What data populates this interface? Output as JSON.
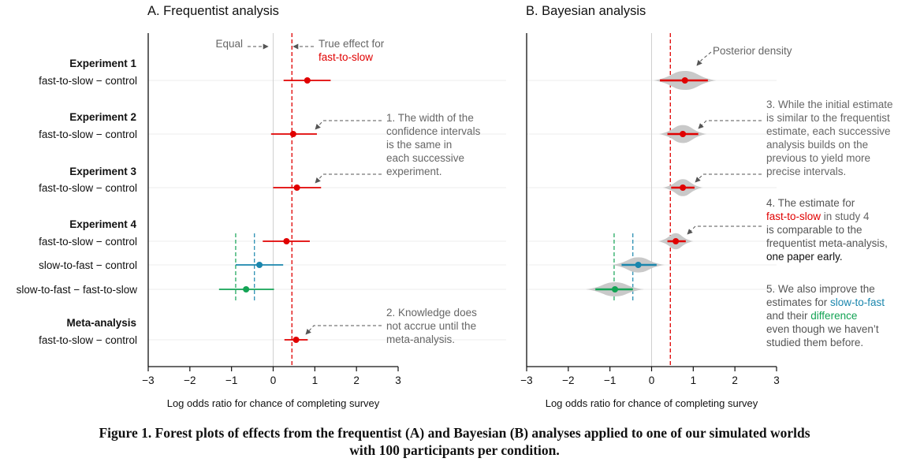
{
  "caption": {
    "line1": "Figure 1. Forest plots of effects from the frequentist (A) and Bayesian (B) analyses applied to one of our simulated worlds",
    "line2": "with 100 participants per condition."
  },
  "colors": {
    "fast_to_slow": "#e00000",
    "slow_to_fast": "#1a86ad",
    "difference": "#13a354",
    "true_line": "#e00000",
    "axis": "#111111",
    "annotation": "#666666",
    "violin": "#c9c9c9"
  },
  "rows": {
    "groups": [
      {
        "heading": "Experiment 1",
        "labels": [
          "fast-to-slow − control"
        ]
      },
      {
        "heading": "Experiment 2",
        "labels": [
          "fast-to-slow − control"
        ]
      },
      {
        "heading": "Experiment 3",
        "labels": [
          "fast-to-slow − control"
        ]
      },
      {
        "heading": "Experiment 4",
        "labels": [
          "fast-to-slow − control",
          "slow-to-fast − control",
          "slow-to-fast − fast-to-slow"
        ]
      },
      {
        "heading": "Meta-analysis",
        "labels": [
          "fast-to-slow − control"
        ]
      }
    ]
  },
  "chart_data": [
    {
      "type": "forest",
      "title": "A. Frequentist analysis",
      "xlabel": "Log odds ratio for chance of completing survey",
      "xlim": [
        -3,
        3
      ],
      "xticks": [
        -3,
        -2,
        -1,
        0,
        1,
        2,
        3
      ],
      "xtick_labels": [
        "−3",
        "−2",
        "−1",
        "0",
        "1",
        "2",
        "3"
      ],
      "true_effect": 0.45,
      "points": [
        {
          "row": "Experiment 1: fast-to-slow − control",
          "estimate": 0.82,
          "low": 0.25,
          "high": 1.38,
          "series": "fast-to-slow"
        },
        {
          "row": "Experiment 2: fast-to-slow − control",
          "estimate": 0.48,
          "low": -0.05,
          "high": 1.05,
          "series": "fast-to-slow"
        },
        {
          "row": "Experiment 3: fast-to-slow − control",
          "estimate": 0.57,
          "low": 0.0,
          "high": 1.15,
          "series": "fast-to-slow"
        },
        {
          "row": "Experiment 4: fast-to-slow − control",
          "estimate": 0.32,
          "low": -0.25,
          "high": 0.88,
          "series": "fast-to-slow"
        },
        {
          "row": "Experiment 4: slow-to-fast − control",
          "estimate": -0.33,
          "low": -0.9,
          "high": 0.24,
          "series": "slow-to-fast"
        },
        {
          "row": "Experiment 4: slow-to-fast − fast-to-slow",
          "estimate": -0.65,
          "low": -1.3,
          "high": 0.02,
          "series": "difference"
        },
        {
          "row": "Meta-analysis: fast-to-slow − control",
          "estimate": 0.55,
          "low": 0.27,
          "high": 0.83,
          "series": "fast-to-slow"
        }
      ],
      "reference_lines": [
        {
          "x": -0.9,
          "color": "difference"
        },
        {
          "x": -0.45,
          "color": "slow-to-fast"
        }
      ],
      "annotations": {
        "equal": "Equal",
        "true_effect_1": "True effect for",
        "true_effect_2": "fast-to-slow",
        "note1": [
          "1. The width of the",
          "confidence intervals",
          "is the same in",
          "each successive",
          "experiment."
        ],
        "note2": [
          "2. Knowledge does",
          "not accrue until the",
          "meta-analysis."
        ]
      }
    },
    {
      "type": "forest-violin",
      "title": "B. Bayesian analysis",
      "xlabel": "Log odds ratio for chance of completing survey",
      "xlim": [
        -3,
        3
      ],
      "xticks": [
        -3,
        -2,
        -1,
        0,
        1,
        2,
        3
      ],
      "xtick_labels": [
        "−3",
        "−2",
        "−1",
        "0",
        "1",
        "2",
        "3"
      ],
      "true_effect": 0.45,
      "points": [
        {
          "row": "Experiment 1: fast-to-slow − control",
          "estimate": 0.8,
          "low": 0.2,
          "high": 1.35,
          "series": "fast-to-slow",
          "density_width": 0.6
        },
        {
          "row": "Experiment 2: fast-to-slow − control",
          "estimate": 0.75,
          "low": 0.38,
          "high": 1.12,
          "series": "fast-to-slow",
          "density_width": 0.42
        },
        {
          "row": "Experiment 3: fast-to-slow − control",
          "estimate": 0.75,
          "low": 0.47,
          "high": 1.03,
          "series": "fast-to-slow",
          "density_width": 0.33
        },
        {
          "row": "Experiment 4: fast-to-slow − control",
          "estimate": 0.58,
          "low": 0.38,
          "high": 0.82,
          "series": "fast-to-slow",
          "density_width": 0.27
        },
        {
          "row": "Experiment 4: slow-to-fast − control",
          "estimate": -0.32,
          "low": -0.72,
          "high": 0.12,
          "series": "slow-to-fast",
          "density_width": 0.48
        },
        {
          "row": "Experiment 4: slow-to-fast − fast-to-slow",
          "estimate": -0.88,
          "low": -1.35,
          "high": -0.45,
          "series": "difference",
          "density_width": 0.55
        }
      ],
      "reference_lines": [
        {
          "x": -0.9,
          "color": "difference"
        },
        {
          "x": -0.45,
          "color": "slow-to-fast"
        }
      ],
      "annotations": {
        "posterior": "Posterior density",
        "note3": [
          "3. While the initial estimate",
          "is similar to the frequentist",
          "estimate, each successive",
          "analysis builds on the",
          "previous to yield more",
          "precise intervals."
        ],
        "note4": [
          [
            "4. The estimate for"
          ],
          [
            "fast-to-slow",
            " in study 4"
          ],
          [
            "is comparable to the"
          ],
          [
            "frequentist meta-analysis,"
          ],
          [
            "one paper early."
          ]
        ],
        "note5": [
          [
            "5. We also improve the"
          ],
          [
            "estimates for ",
            "slow-to-fast"
          ],
          [
            "and their ",
            "difference"
          ],
          [
            "even though we haven’t"
          ],
          [
            "studied them before."
          ]
        ]
      }
    }
  ]
}
